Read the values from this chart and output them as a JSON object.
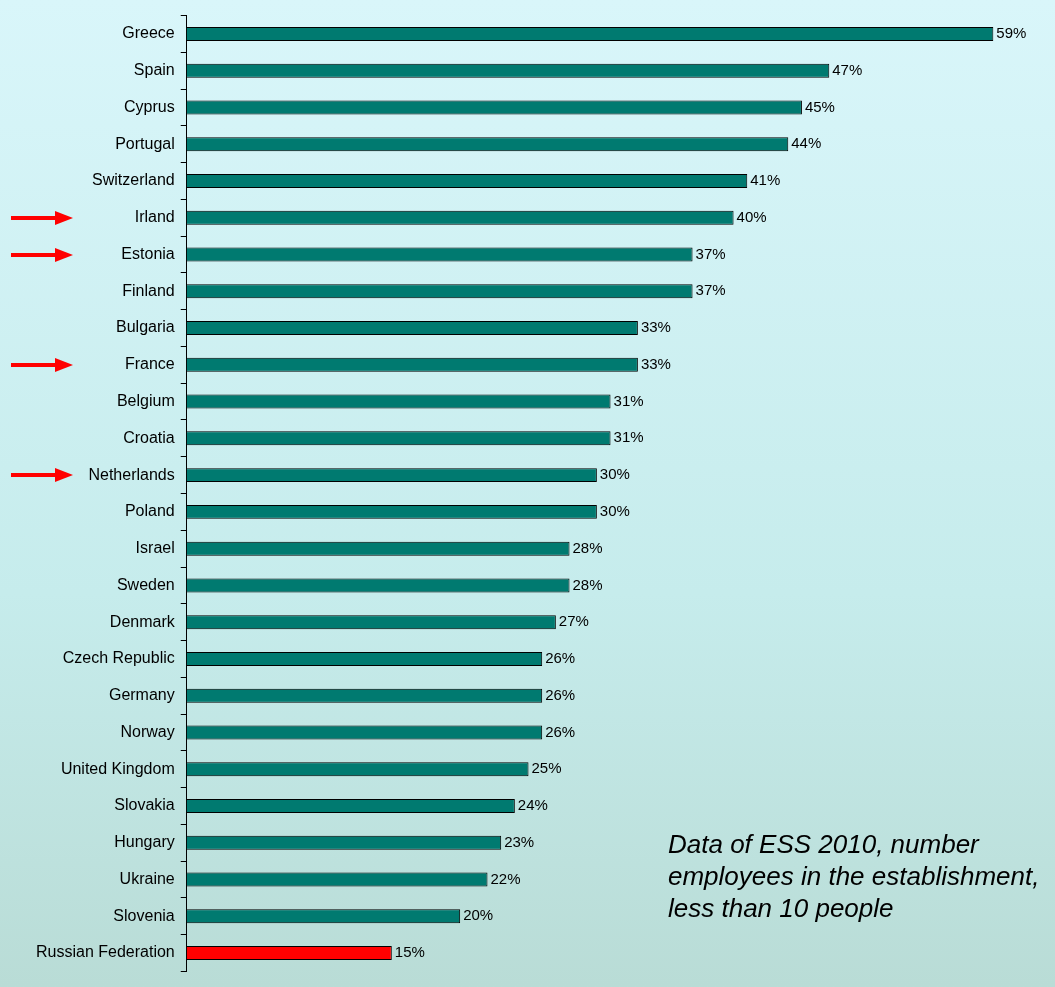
{
  "chart_data": {
    "type": "bar",
    "orientation": "horizontal",
    "categories": [
      "Greece",
      "Spain",
      "Cyprus",
      "Portugal",
      "Switzerland",
      "Irland",
      "Estonia",
      "Finland",
      "Bulgaria",
      "France",
      "Belgium",
      "Croatia",
      "Netherlands",
      "Poland",
      "Israel",
      "Sweden",
      "Denmark",
      "Czech Republic",
      "Germany",
      "Norway",
      "United Kingdom",
      "Slovakia",
      "Hungary",
      "Ukraine",
      "Slovenia",
      "Russian Federation"
    ],
    "values": [
      59,
      47,
      45,
      44,
      41,
      40,
      37,
      37,
      33,
      33,
      31,
      31,
      30,
      30,
      28,
      28,
      27,
      26,
      26,
      26,
      25,
      24,
      23,
      22,
      20,
      15
    ],
    "value_labels": [
      "59%",
      "47%",
      "45%",
      "44%",
      "41%",
      "40%",
      "37%",
      "37%",
      "33%",
      "33%",
      "31%",
      "31%",
      "30%",
      "30%",
      "28%",
      "28%",
      "27%",
      "26%",
      "26%",
      "26%",
      "25%",
      "24%",
      "23%",
      "22%",
      "20%",
      "15%"
    ],
    "colors": [
      "#007a70",
      "#007a70",
      "#007a70",
      "#007a70",
      "#007a70",
      "#007a70",
      "#007a70",
      "#007a70",
      "#007a70",
      "#007a70",
      "#007a70",
      "#007a70",
      "#007a70",
      "#007a70",
      "#007a70",
      "#007a70",
      "#007a70",
      "#007a70",
      "#007a70",
      "#007a70",
      "#007a70",
      "#007a70",
      "#007a70",
      "#007a70",
      "#007a70",
      "#ff0000"
    ],
    "annotations": [
      "Data of ESS 2010, number employees in the establishment, less than 10 people"
    ],
    "grid": false,
    "legend": false
  }
}
